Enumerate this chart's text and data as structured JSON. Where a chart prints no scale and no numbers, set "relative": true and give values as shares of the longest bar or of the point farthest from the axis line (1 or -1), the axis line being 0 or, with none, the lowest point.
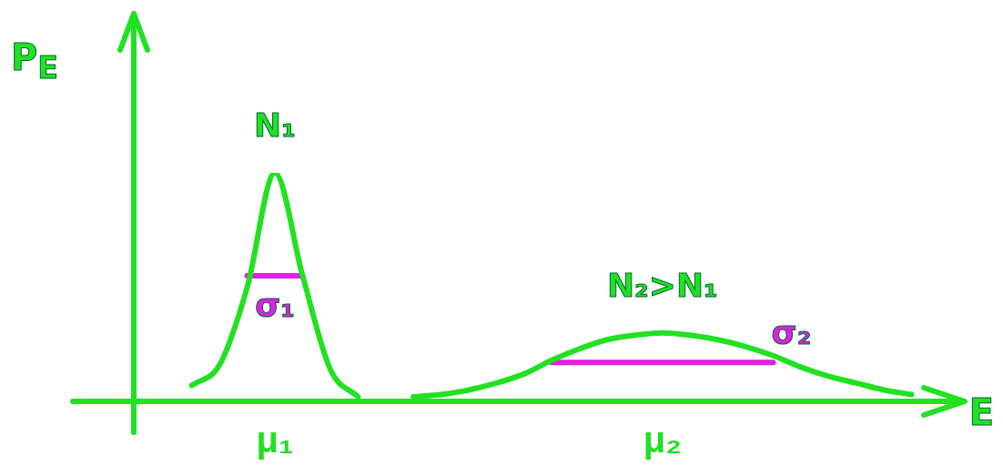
{
  "chart_data": {
    "type": "line",
    "relative": true,
    "xlabel": "E",
    "ylabel": "P$_{E}$",
    "legend": false,
    "ref_lines": [
      {
        "axis": "y",
        "value": 0,
        "color": "#22e022",
        "line_style": "solid"
      }
    ],
    "grid": false,
    "marker": "none",
    "categories": [
      null,
      null,
      null,
      null,
      null,
      "μ₁",
      null,
      null,
      null,
      null,
      null,
      null,
      null,
      null,
      null,
      null,
      null,
      null,
      null,
      "μ₂",
      null,
      null,
      null,
      null,
      null,
      null,
      null,
      null,
      null,
      null
    ],
    "series": [
      {
        "name": "N₁",
        "color": "#22e022",
        "values": [
          null,
          null,
          0.07,
          0.16,
          0.5,
          1,
          0.55,
          0.14,
          0.02,
          null,
          null,
          null,
          null,
          null,
          null,
          null,
          null,
          null,
          null,
          null,
          null,
          null,
          null,
          null,
          null,
          null,
          null,
          null,
          null,
          null
        ]
      },
      {
        "name": "N₂>N₁",
        "color": "#22e022",
        "values": [
          null,
          null,
          null,
          null,
          null,
          null,
          null,
          null,
          null,
          null,
          0.02,
          0.03,
          0.05,
          0.08,
          0.12,
          0.18,
          0.23,
          0.27,
          0.29,
          0.3,
          0.29,
          0.27,
          0.24,
          0.2,
          0.15,
          0.11,
          0.08,
          0.05,
          0.03,
          null
        ]
      },
      {
        "name": "σ₁",
        "color": "#e020e0",
        "values": [
          null,
          null,
          null,
          null,
          0.55,
          0.55,
          0.55,
          null,
          null,
          null,
          null,
          null,
          null,
          null,
          null,
          null,
          null,
          null,
          null,
          null,
          null,
          null,
          null,
          null,
          null,
          null,
          null,
          null,
          null,
          null
        ]
      },
      {
        "name": "σ₂",
        "color": "#e020e0",
        "values": [
          null,
          null,
          null,
          null,
          null,
          null,
          null,
          null,
          null,
          null,
          null,
          null,
          null,
          null,
          null,
          0.17,
          0.17,
          0.17,
          0.17,
          0.17,
          0.17,
          0.17,
          0.17,
          0.17,
          null,
          null,
          null,
          null,
          null,
          null
        ]
      }
    ]
  }
}
